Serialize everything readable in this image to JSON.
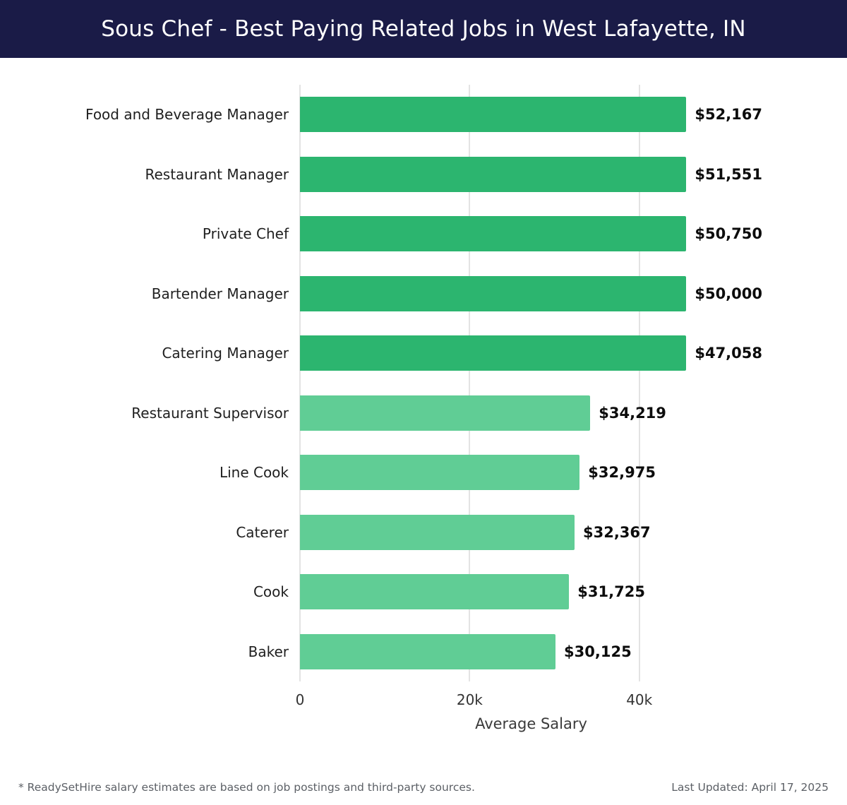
{
  "header": {
    "title": "Sous Chef - Best Paying Related Jobs in West Lafayette, IN",
    "background": "#1a1b47",
    "text_color": "#ffffff"
  },
  "chart_data": {
    "type": "bar",
    "orientation": "horizontal",
    "title": "Sous Chef - Best Paying Related Jobs in West Lafayette, IN",
    "xlabel": "Average Salary",
    "ylabel": "",
    "categories": [
      "Food and Beverage Manager",
      "Restaurant Manager",
      "Private Chef",
      "Bartender Manager",
      "Catering Manager",
      "Restaurant Supervisor",
      "Line Cook",
      "Caterer",
      "Cook",
      "Baker"
    ],
    "values": [
      52167,
      51551,
      50750,
      50000,
      47058,
      34219,
      32975,
      32367,
      31725,
      30125
    ],
    "value_labels": [
      "$52,167",
      "$51,551",
      "$50,750",
      "$50,000",
      "$47,058",
      "$34,219",
      "$32,975",
      "$32,367",
      "$31,725",
      "$30,125"
    ],
    "bar_colors": [
      "#2cb56f",
      "#2cb56f",
      "#2cb56f",
      "#2cb56f",
      "#2cb56f",
      "#60cd95",
      "#60cd95",
      "#60cd95",
      "#60cd95",
      "#60cd95"
    ],
    "xlim": [
      0,
      54500
    ],
    "x_ticks": [
      {
        "value": 0,
        "label": "0"
      },
      {
        "value": 20000,
        "label": "20k"
      },
      {
        "value": 40000,
        "label": "40k"
      }
    ],
    "grid": "vertical",
    "gridline_color": "#e3e3e3",
    "legend": "none"
  },
  "footer": {
    "note": "* ReadySetHire salary estimates are based on job postings and third-party sources.",
    "last_updated": "Last Updated: April 17, 2025"
  }
}
